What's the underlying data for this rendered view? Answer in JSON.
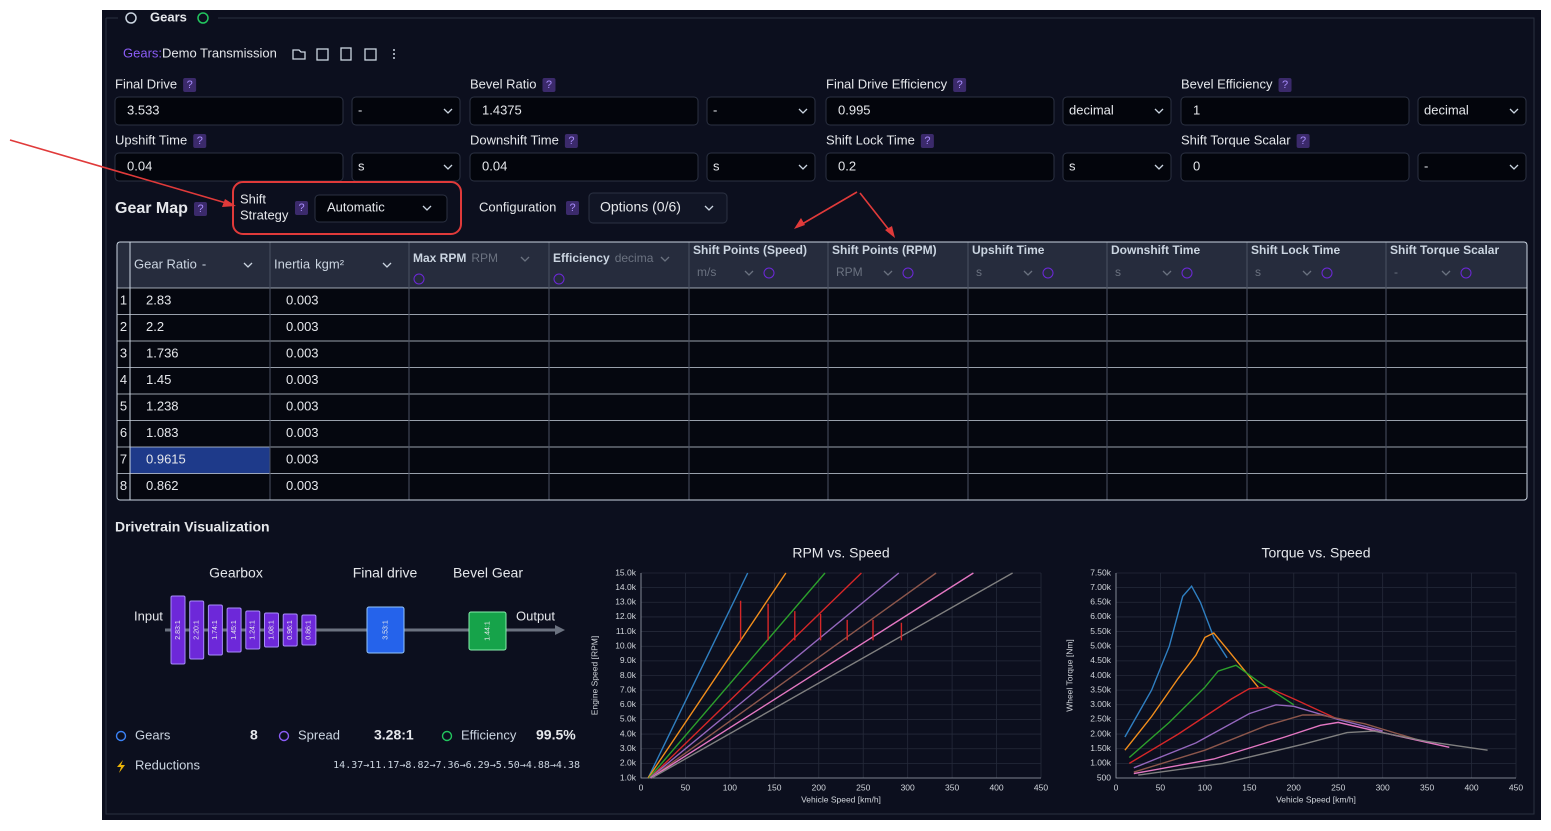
{
  "panel_title": "Gears",
  "header": {
    "prefix": "Gears:",
    "name": "Demo Transmission"
  },
  "help_icon": "?",
  "fields": [
    {
      "label": "Final Drive",
      "value": 3.533,
      "unit": "-"
    },
    {
      "label": "Bevel Ratio",
      "value": 1.4375,
      "unit": "-"
    },
    {
      "label": "Final Drive Efficiency",
      "value": 0.995,
      "unit": "decimal"
    },
    {
      "label": "Bevel Efficiency",
      "value": 1,
      "unit": "decimal"
    },
    {
      "label": "Upshift Time",
      "value": 0.04,
      "unit": "s"
    },
    {
      "label": "Downshift Time",
      "value": 0.04,
      "unit": "s"
    },
    {
      "label": "Shift Lock Time",
      "value": 0.2,
      "unit": "s"
    },
    {
      "label": "Shift Torque Scalar",
      "value": 0,
      "unit": "-"
    }
  ],
  "gear_map": {
    "title": "Gear Map",
    "shift_strategy_label": [
      "Shift",
      "Strategy"
    ],
    "shift_strategy": "Automatic",
    "configuration_label": "Configuration",
    "configuration": "Options (0/6)"
  },
  "table": {
    "columns": [
      {
        "name": "Gear Ratio",
        "unit": "-"
      },
      {
        "name": "Inertia",
        "unit": "kgm²"
      },
      {
        "name": "Max RPM",
        "unit": "RPM"
      },
      {
        "name": "Efficiency",
        "unit": "decima"
      },
      {
        "name": "Shift Points (Speed)",
        "unit": "m/s"
      },
      {
        "name": "Shift Points (RPM)",
        "unit": "RPM"
      },
      {
        "name": "Upshift Time",
        "unit": "s"
      },
      {
        "name": "Downshift Time",
        "unit": "s"
      },
      {
        "name": "Shift Lock Time",
        "unit": "s"
      },
      {
        "name": "Shift Torque Scalar",
        "unit": "-"
      }
    ],
    "rows": [
      [
        1,
        2.83,
        0.003
      ],
      [
        2,
        2.2,
        0.003
      ],
      [
        3,
        1.736,
        0.003
      ],
      [
        4,
        1.45,
        0.003
      ],
      [
        5,
        1.238,
        0.003
      ],
      [
        6,
        1.083,
        0.003
      ],
      [
        7,
        0.9615,
        0.003
      ],
      [
        8,
        0.862,
        0.003
      ]
    ]
  },
  "visualization": {
    "title": "Drivetrain Visualization",
    "diagram": {
      "gearbox_label": "Gearbox",
      "final_drive_label": "Final drive",
      "bevel_label": "Bevel Gear",
      "input": "Input",
      "output": "Output",
      "gears": [
        "2.83:1",
        "2.20:1",
        "1.74:1",
        "1.45:1",
        "1.24:1",
        "1.08:1",
        "0.96:1",
        "0.86:1"
      ],
      "final_drive": "3.53:1",
      "bevel": "1.44:1"
    },
    "stats": [
      {
        "label": "Gears",
        "value": 8
      },
      {
        "label": "Spread",
        "value": "3.28:1"
      },
      {
        "label": "Efficiency",
        "value": "99.5%"
      }
    ],
    "reductions_label": "Reductions",
    "reductions": "14.37→11.17→8.82→7.36→6.29→5.50→4.88→4.38"
  },
  "chart_data": [
    {
      "type": "line",
      "title": "RPM vs. Speed",
      "x_label": "Vehicle Speed [km/h]",
      "y_label": "Engine Speed [RPM]",
      "xlim": [
        0,
        450
      ],
      "xticks": [
        0,
        50,
        100,
        150,
        200,
        250,
        300,
        350,
        400,
        450
      ],
      "ylim": [
        1000,
        15000
      ],
      "yticks": [
        {
          "value": 1000,
          "label": "1.0k"
        },
        {
          "value": 2000,
          "label": "2.0k"
        },
        {
          "value": 3000,
          "label": "3.0k"
        },
        {
          "value": 4000,
          "label": "4.0k"
        },
        {
          "value": 5000,
          "label": "5.0k"
        },
        {
          "value": 6000,
          "label": "6.0k"
        },
        {
          "value": 7000,
          "label": "7.0k"
        },
        {
          "value": 8000,
          "label": "8.0k"
        },
        {
          "value": 9000,
          "label": "9.0k"
        },
        {
          "value": 10000,
          "label": "10.0k"
        },
        {
          "value": 11000,
          "label": "11.0k"
        },
        {
          "value": 12000,
          "label": "12.0k"
        },
        {
          "value": 13000,
          "label": "13.0k"
        },
        {
          "value": 14000,
          "label": "14.0k"
        },
        {
          "value": 15000,
          "label": "15.0k"
        }
      ],
      "grid": true,
      "series": [
        {
          "color": "#2f7fc1",
          "x": [
            8,
            120
          ],
          "values": [
            1000,
            15000
          ]
        },
        {
          "color": "#f28e1c",
          "x": [
            8,
            163
          ],
          "values": [
            1000,
            15000
          ]
        },
        {
          "color": "#2ca02c",
          "x": [
            9,
            207
          ],
          "values": [
            1000,
            15000
          ]
        },
        {
          "color": "#d62728",
          "x": [
            10,
            248
          ],
          "values": [
            1000,
            15000
          ]
        },
        {
          "color": "#9467bd",
          "x": [
            10,
            290
          ],
          "values": [
            1000,
            15000
          ]
        },
        {
          "color": "#8c564b",
          "x": [
            11,
            332
          ],
          "values": [
            1000,
            15000
          ]
        },
        {
          "color": "#e377c2",
          "x": [
            11,
            374
          ],
          "values": [
            1000,
            15000
          ]
        },
        {
          "color": "#7f7f7f",
          "x": [
            12,
            418
          ],
          "values": [
            1000,
            15000
          ]
        },
        {
          "color": "#d62728",
          "x": [
            112,
            112,
            null,
            143,
            143,
            null,
            173,
            173,
            null,
            202,
            202,
            null,
            232,
            232,
            null,
            261,
            261,
            null,
            293,
            293
          ],
          "values": [
            13100,
            10400,
            null,
            12900,
            10400,
            null,
            12400,
            10400,
            null,
            12200,
            10400,
            null,
            11800,
            10400,
            null,
            11800,
            10400,
            null,
            11600,
            10400
          ]
        }
      ]
    },
    {
      "type": "line",
      "title": "Torque vs. Speed",
      "x_label": "Vehicle Speed [km/h]",
      "y_label": "Wheel Torque [Nm]",
      "xlim": [
        0,
        450
      ],
      "xticks": [
        0,
        50,
        100,
        150,
        200,
        250,
        300,
        350,
        400,
        450
      ],
      "ylim": [
        500,
        7500
      ],
      "yticks": [
        500,
        {
          "value": 1000,
          "label": "1.00k"
        },
        {
          "value": 1500,
          "label": "1.50k"
        },
        {
          "value": 2000,
          "label": "2.00k"
        },
        {
          "value": 2500,
          "label": "2.50k"
        },
        {
          "value": 3000,
          "label": "3.00k"
        },
        {
          "value": 3500,
          "label": "3.50k"
        },
        {
          "value": 4000,
          "label": "4.00k"
        },
        {
          "value": 4500,
          "label": "4.50k"
        },
        {
          "value": 5000,
          "label": "5.00k"
        },
        {
          "value": 5500,
          "label": "5.50k"
        },
        {
          "value": 6000,
          "label": "6.00k"
        },
        {
          "value": 6500,
          "label": "6.50k"
        },
        {
          "value": 7000,
          "label": "7.00k"
        },
        {
          "value": 7500,
          "label": "7.50k"
        }
      ],
      "grid": true,
      "series": [
        {
          "color": "#2f7fc1",
          "x": [
            10,
            40,
            60,
            75,
            85,
            95,
            110,
            125
          ],
          "values": [
            1900,
            3500,
            5000,
            6700,
            7050,
            6500,
            5300,
            4600
          ]
        },
        {
          "color": "#f28e1c",
          "x": [
            10,
            40,
            70,
            90,
            100,
            110,
            125,
            160
          ],
          "values": [
            1450,
            2600,
            3900,
            4700,
            5300,
            5450,
            4900,
            3600
          ]
        },
        {
          "color": "#2ca02c",
          "x": [
            15,
            60,
            100,
            115,
            135,
            160,
            200
          ],
          "values": [
            1200,
            2400,
            3600,
            4150,
            4350,
            3800,
            3000
          ]
        },
        {
          "color": "#d62728",
          "x": [
            15,
            70,
            130,
            150,
            170,
            200,
            250
          ],
          "values": [
            1000,
            2000,
            3200,
            3550,
            3600,
            3200,
            2500
          ]
        },
        {
          "color": "#9467bd",
          "x": [
            20,
            90,
            150,
            180,
            200,
            250,
            300
          ],
          "values": [
            850,
            1700,
            2700,
            3000,
            2950,
            2500,
            2100
          ]
        },
        {
          "color": "#8c564b",
          "x": [
            20,
            100,
            170,
            210,
            230,
            280,
            340
          ],
          "values": [
            700,
            1450,
            2300,
            2650,
            2650,
            2350,
            1800
          ]
        },
        {
          "color": "#e377c2",
          "x": [
            20,
            110,
            190,
            230,
            250,
            300,
            375
          ],
          "values": [
            650,
            1150,
            1900,
            2300,
            2400,
            2050,
            1550
          ]
        },
        {
          "color": "#7f7f7f",
          "x": [
            25,
            120,
            210,
            260,
            290,
            350,
            418
          ],
          "values": [
            600,
            1000,
            1650,
            2050,
            2100,
            1750,
            1450
          ]
        }
      ]
    }
  ]
}
